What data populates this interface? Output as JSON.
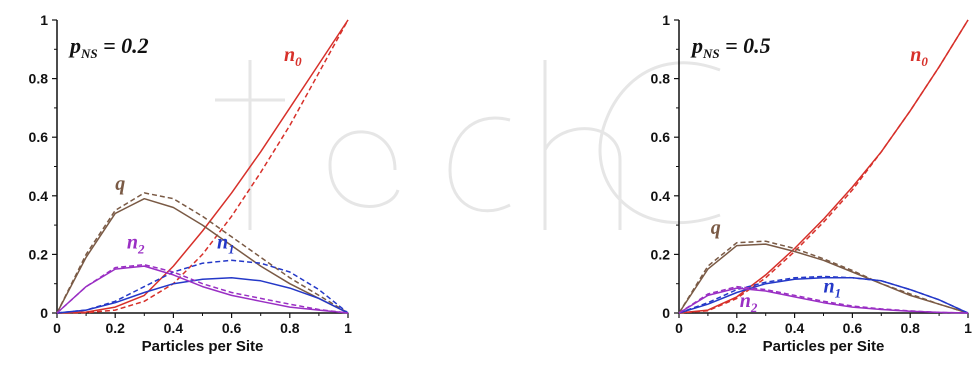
{
  "chart_data": [
    {
      "type": "line",
      "title": {
        "base": "p",
        "sub": "NS",
        "rest": " = 0.2"
      },
      "xlabel": "Particles per Site",
      "xlim": [
        0,
        1
      ],
      "ylim": [
        0,
        1
      ],
      "xticks": [
        "0",
        "0.2",
        "0.4",
        "0.6",
        "0.8",
        "1"
      ],
      "yticks": [
        "0",
        "0.2",
        "0.4",
        "0.6",
        "0.8",
        "1"
      ],
      "series": [
        {
          "name": "n0",
          "color": "#d7302a",
          "style": "solid",
          "x": [
            0,
            0.1,
            0.2,
            0.3,
            0.4,
            0.5,
            0.6,
            0.7,
            0.8,
            0.9,
            1.0
          ],
          "y": [
            0,
            0.003,
            0.02,
            0.06,
            0.16,
            0.28,
            0.41,
            0.55,
            0.7,
            0.85,
            1.0
          ]
        },
        {
          "name": "n0",
          "color": "#d7302a",
          "style": "dashed",
          "x": [
            0,
            0.1,
            0.2,
            0.3,
            0.4,
            0.5,
            0.6,
            0.7,
            0.8,
            0.9,
            1.0
          ],
          "y": [
            0,
            0.001,
            0.01,
            0.04,
            0.1,
            0.2,
            0.33,
            0.48,
            0.64,
            0.82,
            1.0
          ]
        },
        {
          "name": "q",
          "color": "#7a5a45",
          "style": "solid",
          "x": [
            0,
            0.1,
            0.2,
            0.3,
            0.4,
            0.5,
            0.6,
            0.7,
            0.8,
            0.9,
            1.0
          ],
          "y": [
            0,
            0.19,
            0.34,
            0.39,
            0.36,
            0.3,
            0.23,
            0.16,
            0.1,
            0.05,
            0
          ]
        },
        {
          "name": "q",
          "color": "#7a5a45",
          "style": "dashed",
          "x": [
            0,
            0.1,
            0.2,
            0.3,
            0.4,
            0.5,
            0.6,
            0.7,
            0.8,
            0.9,
            1.0
          ],
          "y": [
            0,
            0.2,
            0.35,
            0.41,
            0.39,
            0.33,
            0.26,
            0.19,
            0.12,
            0.06,
            0
          ]
        },
        {
          "name": "n1",
          "color": "#2438c8",
          "style": "solid",
          "x": [
            0,
            0.1,
            0.2,
            0.3,
            0.4,
            0.5,
            0.6,
            0.7,
            0.8,
            0.9,
            1.0
          ],
          "y": [
            0,
            0.01,
            0.035,
            0.07,
            0.1,
            0.115,
            0.12,
            0.11,
            0.085,
            0.05,
            0
          ]
        },
        {
          "name": "n1",
          "color": "#2438c8",
          "style": "dashed",
          "x": [
            0,
            0.1,
            0.2,
            0.3,
            0.4,
            0.5,
            0.6,
            0.7,
            0.8,
            0.9,
            1.0
          ],
          "y": [
            0,
            0.01,
            0.04,
            0.09,
            0.14,
            0.17,
            0.18,
            0.17,
            0.14,
            0.08,
            0
          ]
        },
        {
          "name": "n2",
          "color": "#9a2fc4",
          "style": "solid",
          "x": [
            0,
            0.1,
            0.2,
            0.3,
            0.4,
            0.5,
            0.6,
            0.7,
            0.8,
            0.9,
            1.0
          ],
          "y": [
            0,
            0.09,
            0.15,
            0.16,
            0.13,
            0.09,
            0.06,
            0.04,
            0.02,
            0.01,
            0
          ]
        },
        {
          "name": "n2",
          "color": "#9a2fc4",
          "style": "dashed",
          "x": [
            0,
            0.1,
            0.2,
            0.3,
            0.4,
            0.5,
            0.6,
            0.7,
            0.8,
            0.9,
            1.0
          ],
          "y": [
            0,
            0.09,
            0.155,
            0.165,
            0.14,
            0.1,
            0.07,
            0.05,
            0.03,
            0.012,
            0
          ]
        }
      ],
      "annotations": [
        {
          "series": "n0",
          "base": "n",
          "sub": "0",
          "color": "#d7302a",
          "x": 0.78,
          "y": 0.86
        },
        {
          "series": "q",
          "base": "q",
          "sub": "",
          "color": "#7a5a45",
          "x": 0.2,
          "y": 0.42
        },
        {
          "series": "n2",
          "base": "n",
          "sub": "2",
          "color": "#9a2fc4",
          "x": 0.24,
          "y": 0.22
        },
        {
          "series": "n1",
          "base": "n",
          "sub": "1",
          "color": "#2438c8",
          "x": 0.55,
          "y": 0.22
        }
      ]
    },
    {
      "type": "line",
      "title": {
        "base": "p",
        "sub": "NS",
        "rest": " = 0.5"
      },
      "xlabel": "Particles per Site",
      "xlim": [
        0,
        1
      ],
      "ylim": [
        0,
        1
      ],
      "xticks": [
        "0",
        "0.2",
        "0.4",
        "0.6",
        "0.8",
        "1"
      ],
      "yticks": [
        "0",
        "0.2",
        "0.4",
        "0.6",
        "0.8",
        "1"
      ],
      "series": [
        {
          "name": "n0",
          "color": "#d7302a",
          "style": "solid",
          "x": [
            0,
            0.1,
            0.2,
            0.3,
            0.4,
            0.5,
            0.6,
            0.7,
            0.8,
            0.9,
            1.0
          ],
          "y": [
            0,
            0.01,
            0.055,
            0.13,
            0.22,
            0.32,
            0.43,
            0.55,
            0.69,
            0.84,
            1.0
          ]
        },
        {
          "name": "n0",
          "color": "#d7302a",
          "style": "dashed",
          "x": [
            0,
            0.1,
            0.2,
            0.3,
            0.4,
            0.5,
            0.6,
            0.7,
            0.8,
            0.9,
            1.0
          ],
          "y": [
            0,
            0.008,
            0.05,
            0.12,
            0.21,
            0.31,
            0.42,
            0.55,
            0.69,
            0.84,
            1.0
          ]
        },
        {
          "name": "q",
          "color": "#7a5a45",
          "style": "solid",
          "x": [
            0,
            0.1,
            0.2,
            0.3,
            0.4,
            0.5,
            0.6,
            0.7,
            0.8,
            0.9,
            1.0
          ],
          "y": [
            0,
            0.15,
            0.23,
            0.235,
            0.21,
            0.18,
            0.14,
            0.1,
            0.06,
            0.03,
            0
          ]
        },
        {
          "name": "q",
          "color": "#7a5a45",
          "style": "dashed",
          "x": [
            0,
            0.1,
            0.2,
            0.3,
            0.4,
            0.5,
            0.6,
            0.7,
            0.8,
            0.9,
            1.0
          ],
          "y": [
            0,
            0.16,
            0.24,
            0.245,
            0.22,
            0.185,
            0.145,
            0.1,
            0.065,
            0.03,
            0
          ]
        },
        {
          "name": "n1",
          "color": "#2438c8",
          "style": "solid",
          "x": [
            0,
            0.1,
            0.2,
            0.3,
            0.4,
            0.5,
            0.6,
            0.7,
            0.8,
            0.9,
            1.0
          ],
          "y": [
            0,
            0.03,
            0.07,
            0.1,
            0.115,
            0.12,
            0.12,
            0.11,
            0.08,
            0.045,
            0
          ]
        },
        {
          "name": "n1",
          "color": "#2438c8",
          "style": "dashed",
          "x": [
            0,
            0.1,
            0.2,
            0.3,
            0.4,
            0.5,
            0.6,
            0.7,
            0.8,
            0.9,
            1.0
          ],
          "y": [
            0,
            0.035,
            0.08,
            0.105,
            0.12,
            0.125,
            0.12,
            0.11,
            0.08,
            0.045,
            0
          ]
        },
        {
          "name": "n2",
          "color": "#9a2fc4",
          "style": "solid",
          "x": [
            0,
            0.1,
            0.2,
            0.3,
            0.4,
            0.5,
            0.6,
            0.7,
            0.8,
            0.9,
            1.0
          ],
          "y": [
            0,
            0.06,
            0.085,
            0.075,
            0.055,
            0.035,
            0.02,
            0.012,
            0.006,
            0.002,
            0
          ]
        },
        {
          "name": "n2",
          "color": "#9a2fc4",
          "style": "dashed",
          "x": [
            0,
            0.1,
            0.2,
            0.3,
            0.4,
            0.5,
            0.6,
            0.7,
            0.8,
            0.9,
            1.0
          ],
          "y": [
            0,
            0.065,
            0.09,
            0.08,
            0.06,
            0.04,
            0.024,
            0.014,
            0.007,
            0.002,
            0
          ]
        }
      ],
      "annotations": [
        {
          "series": "n0",
          "base": "n",
          "sub": "0",
          "color": "#d7302a",
          "x": 0.8,
          "y": 0.86
        },
        {
          "series": "q",
          "base": "q",
          "sub": "",
          "color": "#7a5a45",
          "x": 0.11,
          "y": 0.27
        },
        {
          "series": "n2",
          "base": "n",
          "sub": "2",
          "color": "#9a2fc4",
          "x": 0.21,
          "y": 0.02
        },
        {
          "series": "n1",
          "base": "n",
          "sub": "1",
          "color": "#2438c8",
          "x": 0.5,
          "y": 0.07
        }
      ]
    }
  ]
}
